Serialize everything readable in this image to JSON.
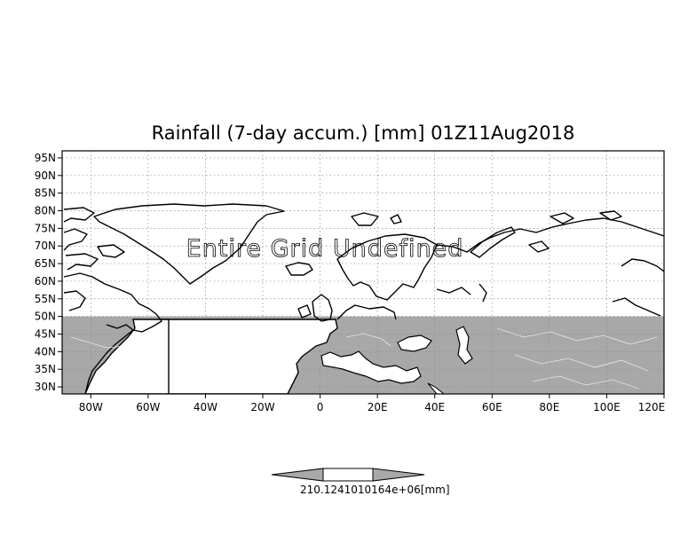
{
  "title": "Rainfall (7-day accum.) [mm] 01Z11Aug2018",
  "message": "Entire Grid Undefined",
  "map": {
    "lon_range": [
      -90,
      120
    ],
    "lat_range": [
      28,
      97
    ],
    "shaded_lat_max": 50,
    "shade_color": "#a8a8a8",
    "land_color": "#a0a0a0",
    "grid": "dotted"
  },
  "axes": {
    "lon_ticks": [
      {
        "value": -80,
        "label": "80W"
      },
      {
        "value": -60,
        "label": "60W"
      },
      {
        "value": -40,
        "label": "40W"
      },
      {
        "value": -20,
        "label": "20W"
      },
      {
        "value": 0,
        "label": "0"
      },
      {
        "value": 20,
        "label": "20E"
      },
      {
        "value": 40,
        "label": "40E"
      },
      {
        "value": 60,
        "label": "60E"
      },
      {
        "value": 80,
        "label": "80E"
      },
      {
        "value": 100,
        "label": "100E"
      },
      {
        "value": 120,
        "label": "120E"
      }
    ],
    "lat_ticks": [
      {
        "value": 30,
        "label": "30N"
      },
      {
        "value": 35,
        "label": "35N"
      },
      {
        "value": 40,
        "label": "40N"
      },
      {
        "value": 45,
        "label": "45N"
      },
      {
        "value": 50,
        "label": "50N"
      },
      {
        "value": 55,
        "label": "55N"
      },
      {
        "value": 60,
        "label": "60N"
      },
      {
        "value": 65,
        "label": "65N"
      },
      {
        "value": 70,
        "label": "70N"
      },
      {
        "value": 75,
        "label": "75N"
      },
      {
        "value": 80,
        "label": "80N"
      },
      {
        "value": 85,
        "label": "85N"
      },
      {
        "value": 90,
        "label": "90N"
      },
      {
        "value": 95,
        "label": "95N"
      }
    ]
  },
  "colorbar": {
    "label": "210.1241010164e+06[mm]",
    "colors": [
      "#a8a8a8",
      "#ffffff",
      "#a8a8a8"
    ]
  }
}
